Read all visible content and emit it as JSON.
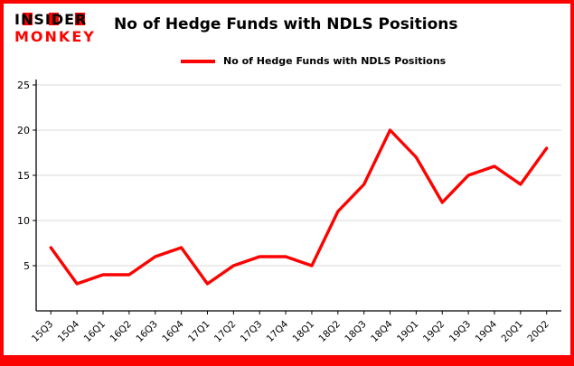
{
  "header": {
    "logo_line1": "INSIDER",
    "logo_line2": "MONKEY",
    "title": "No of Hedge Funds with NDLS Positions"
  },
  "legend": {
    "label": "No of Hedge Funds with NDLS Positions"
  },
  "colors": {
    "accent_red": "#fb0300",
    "grid": "#d9d9d9",
    "axis": "#000000",
    "text": "#000000",
    "background": "#ffffff"
  },
  "chart_data": {
    "type": "line",
    "title": "No of Hedge Funds with NDLS Positions",
    "xlabel": "",
    "ylabel": "",
    "categories": [
      "15Q3",
      "15Q4",
      "16Q1",
      "16Q2",
      "16Q3",
      "16Q4",
      "17Q1",
      "17Q2",
      "17Q3",
      "17Q4",
      "18Q1",
      "18Q2",
      "18Q3",
      "18Q4",
      "19Q1",
      "19Q2",
      "19Q3",
      "19Q4",
      "20Q1",
      "20Q2"
    ],
    "values": [
      7,
      3,
      4,
      4,
      6,
      7,
      3,
      5,
      6,
      6,
      5,
      11,
      14,
      20,
      17,
      12,
      15,
      16,
      14,
      18
    ],
    "ylim": [
      0,
      25
    ],
    "yticks": [
      5,
      10,
      15,
      20,
      25
    ],
    "grid": true,
    "legend_position": "top"
  }
}
